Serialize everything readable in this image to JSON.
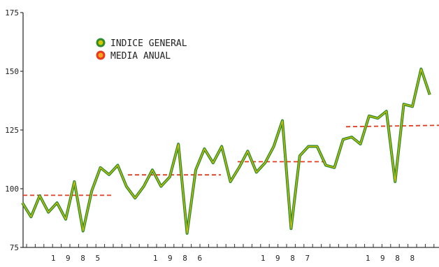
{
  "chart_data": {
    "type": "line",
    "legend": [
      {
        "name": "INDICE GENERAL",
        "color": "#2e8b2e",
        "ring_inner": "#d7c400"
      },
      {
        "name": "MEDIA ANUAL",
        "color": "#e8391c",
        "ring_inner": "#f5a623"
      }
    ],
    "ylim": [
      75,
      175
    ],
    "yticks": [
      75,
      100,
      125,
      150,
      175
    ],
    "year_labels": [
      "1 9 8 5",
      "1 9 8 6",
      "1 9 8 7",
      "1 9 8 8"
    ],
    "series": [
      {
        "name": "INDICE GENERAL",
        "color": "#2e8b2e",
        "values": [
          94,
          88,
          97,
          90,
          94,
          87,
          103,
          82,
          99,
          109,
          106,
          110,
          101,
          96,
          101,
          108,
          101,
          105,
          119,
          81,
          108,
          117,
          111,
          118,
          103,
          109,
          116,
          107,
          111,
          118,
          129,
          83,
          114,
          118,
          118,
          110,
          109,
          121,
          122,
          119,
          131,
          130,
          133,
          103,
          136,
          135,
          151,
          140
        ]
      },
      {
        "name": "MEDIA ANUAL",
        "color": "#e8391c",
        "values": [
          97.2,
          105.9,
          111.5,
          126.4
        ]
      }
    ]
  }
}
